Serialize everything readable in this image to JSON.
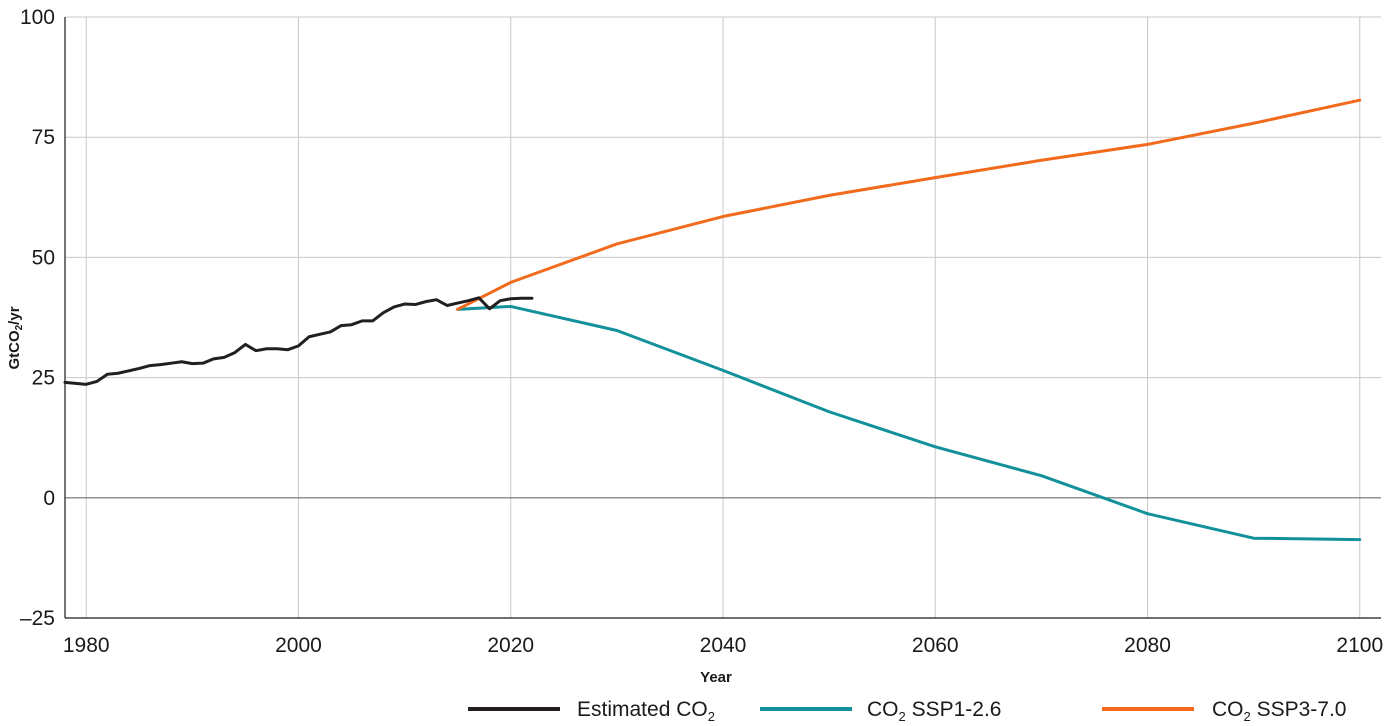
{
  "chart_data": {
    "type": "line",
    "xlabel": "Year",
    "ylabel_main": "GtCO",
    "ylabel_sub": "2",
    "ylabel_tail": "/yr",
    "xlim": [
      1978,
      2102
    ],
    "ylim": [
      -25,
      100
    ],
    "x_ticks": [
      1980,
      2000,
      2020,
      2040,
      2060,
      2080,
      2100
    ],
    "y_ticks": [
      100,
      75,
      50,
      25,
      0,
      -25
    ],
    "y_tick_labels": [
      "100",
      "75",
      "50",
      "25",
      "0",
      "–25"
    ],
    "grid": true,
    "legend_position": "bottom-right",
    "series": [
      {
        "legend_main": "Estimated CO",
        "legend_sub": "2",
        "legend_tail": "",
        "color": "#231f20",
        "x": [
          1978,
          1979,
          1980,
          1981,
          1982,
          1983,
          1984,
          1985,
          1986,
          1987,
          1988,
          1989,
          1990,
          1991,
          1992,
          1993,
          1994,
          1995,
          1996,
          1997,
          1998,
          1999,
          2000,
          2001,
          2002,
          2003,
          2004,
          2005,
          2006,
          2007,
          2008,
          2009,
          2010,
          2011,
          2012,
          2013,
          2014,
          2015,
          2016,
          2017,
          2018,
          2019,
          2020,
          2021,
          2022
        ],
        "y": [
          24.0,
          23.8,
          23.6,
          24.2,
          25.7,
          25.9,
          26.4,
          26.9,
          27.5,
          27.7,
          28.0,
          28.3,
          27.9,
          28.0,
          28.9,
          29.2,
          30.2,
          31.9,
          30.6,
          31.0,
          31.0,
          30.8,
          31.6,
          33.5,
          34.0,
          34.5,
          35.8,
          36.0,
          36.8,
          36.8,
          38.5,
          39.7,
          40.3,
          40.2,
          40.8,
          41.2,
          40.0,
          40.5,
          41.0,
          41.6,
          39.3,
          41.0,
          41.4,
          41.5,
          41.5
        ],
        "values_note": ""
      },
      {
        "legend_main": "CO",
        "legend_sub": "2",
        "legend_tail": " SSP1-2.6",
        "color": "#12919b",
        "x": [
          2015,
          2020,
          2030,
          2040,
          2050,
          2060,
          2070,
          2080,
          2090,
          2100
        ],
        "y": [
          39.2,
          39.8,
          34.8,
          26.5,
          17.9,
          10.6,
          4.6,
          -3.3,
          -8.4,
          -8.7
        ]
      },
      {
        "legend_main": "CO",
        "legend_sub": "2",
        "legend_tail": " SSP3-7.0",
        "color": "#f26a1b",
        "x": [
          2015,
          2020,
          2030,
          2040,
          2050,
          2060,
          2070,
          2080,
          2090,
          2100
        ],
        "y": [
          39.2,
          44.8,
          52.8,
          58.5,
          62.9,
          66.6,
          70.2,
          73.5,
          77.9,
          82.7
        ]
      }
    ]
  }
}
